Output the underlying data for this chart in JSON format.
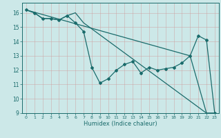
{
  "xlabel": "Humidex (Indice chaleur)",
  "bg_color": "#cce8e8",
  "line_color": "#1a6b6b",
  "grid_color": "#b0c8c8",
  "xlim": [
    -0.5,
    23.5
  ],
  "ylim": [
    9,
    16.7
  ],
  "yticks": [
    9,
    10,
    11,
    12,
    13,
    14,
    15,
    16
  ],
  "xticks": [
    0,
    1,
    2,
    3,
    4,
    5,
    6,
    7,
    8,
    9,
    10,
    11,
    12,
    13,
    14,
    15,
    16,
    17,
    18,
    19,
    20,
    21,
    22,
    23
  ],
  "line1_x": [
    0,
    1,
    2,
    3,
    4,
    5,
    6,
    7,
    8,
    9,
    10,
    11,
    12,
    13,
    14,
    15,
    16,
    17,
    18,
    19,
    20,
    21,
    22,
    23
  ],
  "line1_y": [
    16.2,
    16.0,
    15.6,
    15.6,
    15.5,
    15.8,
    15.3,
    14.7,
    12.2,
    11.1,
    11.4,
    12.0,
    12.4,
    12.6,
    11.8,
    12.2,
    12.0,
    12.1,
    12.2,
    12.5,
    13.0,
    14.4,
    14.1,
    9.0
  ],
  "line2_x": [
    0,
    1,
    2,
    3,
    4,
    5,
    6,
    7,
    22,
    23
  ],
  "line2_y": [
    16.2,
    16.0,
    15.6,
    15.6,
    15.5,
    15.8,
    16.0,
    15.3,
    9.0,
    9.0
  ],
  "line3_x": [
    0,
    20,
    22,
    23
  ],
  "line3_y": [
    16.2,
    13.0,
    9.0,
    9.0
  ]
}
